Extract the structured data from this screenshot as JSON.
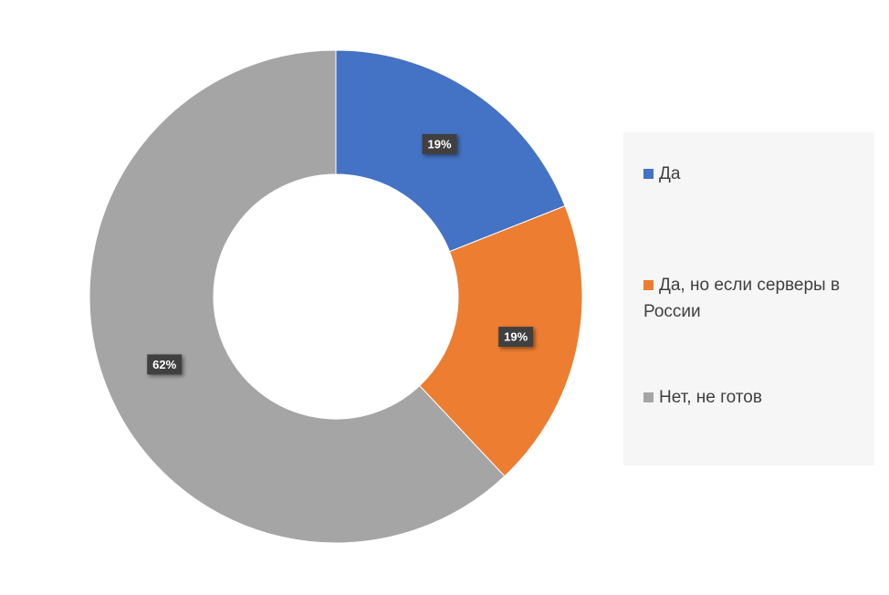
{
  "chart_data": {
    "type": "donut",
    "categories": [
      "Да",
      "Да, но если серверы в России",
      "Нет, не готов"
    ],
    "values": [
      19,
      19,
      62
    ],
    "value_labels": [
      "19%",
      "19%",
      "62%"
    ],
    "colors": [
      "#4472c4",
      "#ed7d31",
      "#a5a5a5"
    ],
    "legend": "right"
  }
}
